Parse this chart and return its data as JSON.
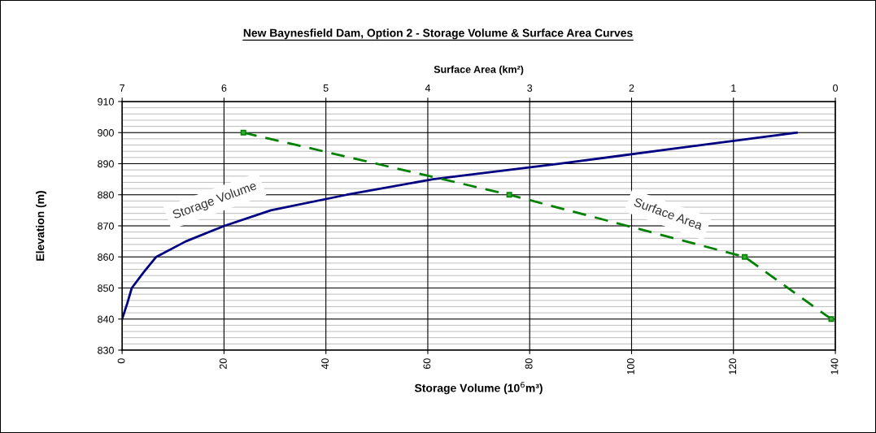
{
  "chart_data": {
    "type": "line",
    "title": "New Baynesfield Dam, Option 2 - Storage Volume & Surface Area Curves",
    "xlabel": "Storage Volume (10$^{6}$m³)",
    "x2label": "Surface Area (km²)",
    "ylabel": "Elevation (m)",
    "series": [
      {
        "name": "Storage Volume",
        "color": "#000080",
        "x": [
          0,
          1.0,
          1.9,
          4.2,
          6.7,
          12.5,
          20.1,
          29.2,
          44.1,
          61,
          86,
          109,
          132.4
        ],
        "values": [
          840,
          845,
          850,
          855,
          860,
          865,
          870,
          875,
          880,
          885,
          890,
          895,
          900
        ],
        "line_style": "solid"
      },
      {
        "name": "Surface Area",
        "color": "#008000",
        "axis": "x2",
        "x": [
          5.81,
          3.2,
          0.89,
          0.04
        ],
        "values": [
          900,
          880,
          860,
          840
        ],
        "marker": "square",
        "line_style": "dashed"
      }
    ],
    "xlim": [
      0,
      140
    ],
    "xticks": [
      0,
      20,
      40,
      60,
      80,
      100,
      120,
      140
    ],
    "x2lim": [
      7,
      0
    ],
    "x2ticks": [
      7,
      6,
      5,
      4,
      3,
      2,
      1,
      0
    ],
    "ylim": [
      830,
      910
    ],
    "yticks": [
      830,
      840,
      850,
      860,
      870,
      880,
      890,
      900,
      910
    ],
    "grid": true,
    "legend": false
  }
}
